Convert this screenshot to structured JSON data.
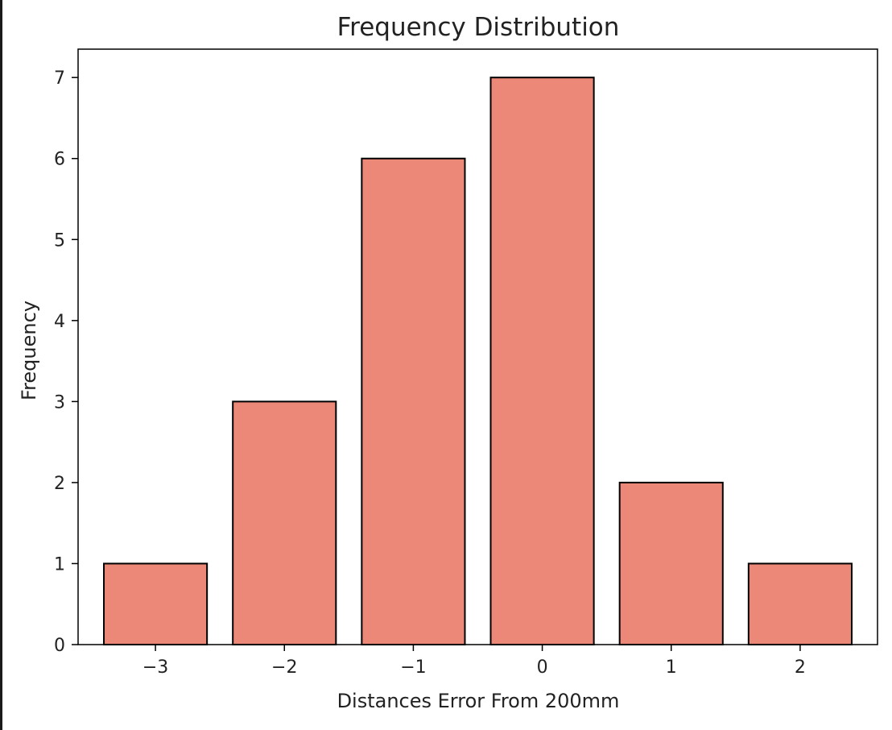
{
  "chart_data": {
    "type": "bar",
    "title": "Frequency Distribution",
    "xlabel": "Distances Error From 200mm",
    "ylabel": "Frequency",
    "categories": [
      -3,
      -2,
      -1,
      0,
      1,
      2
    ],
    "values": [
      1,
      3,
      6,
      7,
      2,
      1
    ],
    "x_ticks": [
      "−3",
      "−2",
      "−1",
      "0",
      "1",
      "2"
    ],
    "y_ticks": [
      "0",
      "1",
      "2",
      "3",
      "4",
      "5",
      "6",
      "7"
    ],
    "xlim": [
      -3.6,
      2.6
    ],
    "ylim": [
      0,
      7.35
    ],
    "bar_width": 0.8,
    "grid": false,
    "colors": {
      "bar_fill": "#eb8878",
      "bar_edge": "#000000"
    }
  }
}
